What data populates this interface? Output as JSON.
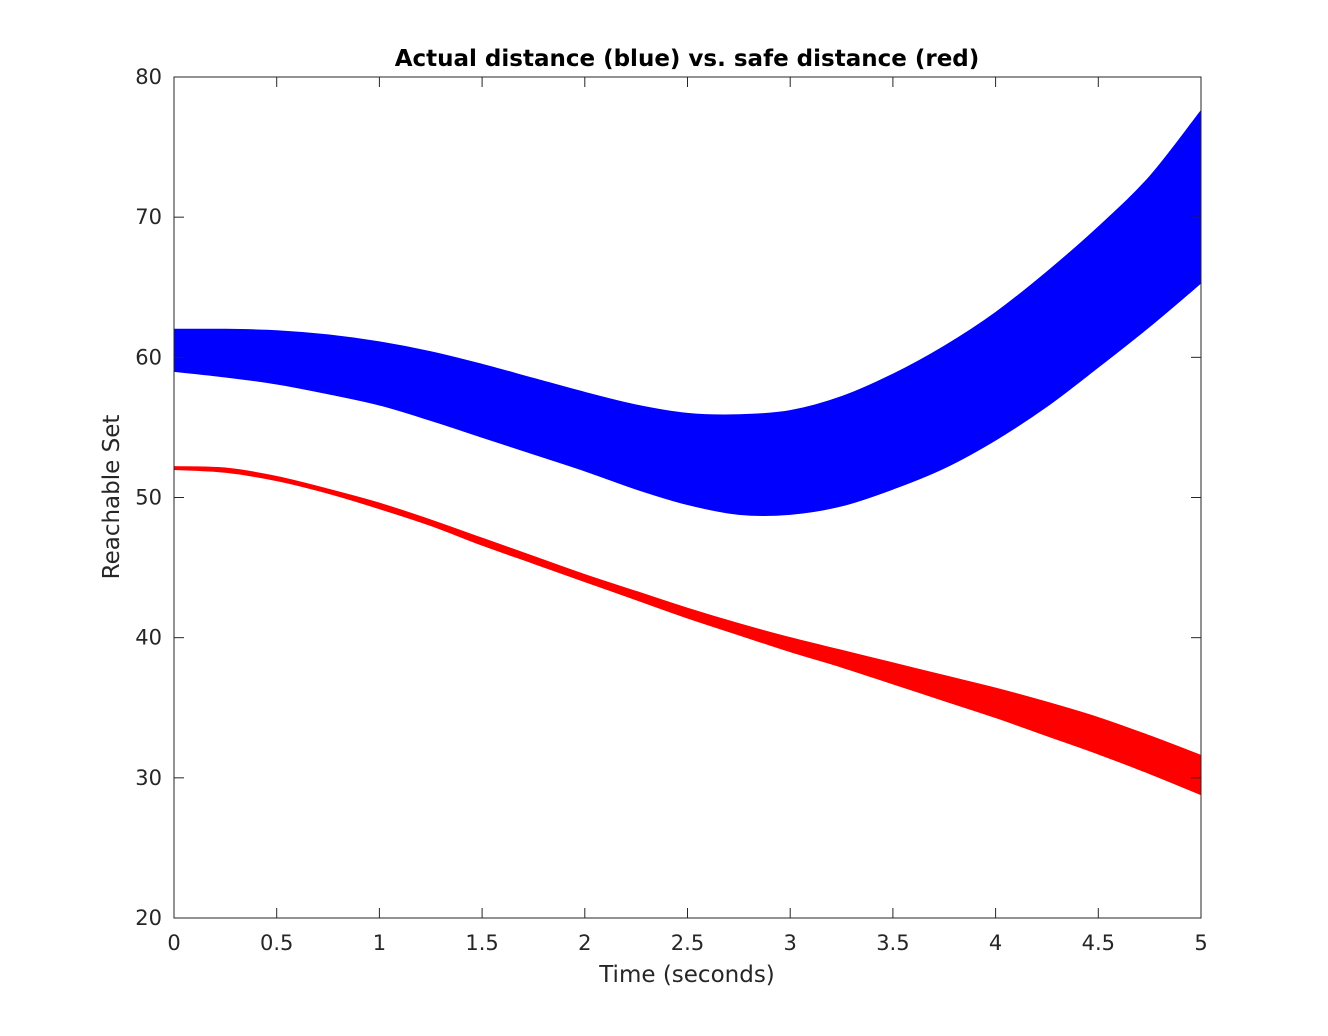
{
  "chart_data": {
    "type": "area",
    "title": "Actual distance (blue) vs. safe distance (red)",
    "xlabel": "Time (seconds)",
    "ylabel": "Reachable Set",
    "xlim": [
      0,
      5
    ],
    "ylim": [
      20,
      80
    ],
    "xticks": [
      "0",
      "0.5",
      "1",
      "1.5",
      "2",
      "2.5",
      "3",
      "3.5",
      "4",
      "4.5",
      "5"
    ],
    "yticks": [
      "20",
      "30",
      "40",
      "50",
      "60",
      "70",
      "80"
    ],
    "grid": false,
    "legend": "none",
    "series": [
      {
        "color": "#0000ff",
        "x": [
          0,
          0.25,
          0.5,
          0.75,
          1,
          1.25,
          1.5,
          1.75,
          2,
          2.25,
          2.5,
          2.75,
          3,
          3.25,
          3.5,
          3.75,
          4,
          4.25,
          4.5,
          4.75,
          5
        ],
        "upper": [
          62.0,
          62.0,
          61.9,
          61.6,
          61.1,
          60.4,
          59.5,
          58.5,
          57.5,
          56.6,
          56.0,
          55.9,
          56.2,
          57.2,
          58.8,
          60.8,
          63.2,
          66.1,
          69.3,
          72.9,
          77.6
        ],
        "lower": [
          59.0,
          58.6,
          58.1,
          57.4,
          56.6,
          55.5,
          54.3,
          53.1,
          51.9,
          50.6,
          49.5,
          48.8,
          48.8,
          49.4,
          50.6,
          52.1,
          54.1,
          56.5,
          59.3,
          62.2,
          65.3
        ]
      },
      {
        "color": "#ff0000",
        "x": [
          0,
          0.25,
          0.5,
          0.75,
          1,
          1.25,
          1.5,
          1.75,
          2,
          2.25,
          2.5,
          2.75,
          3,
          3.25,
          3.5,
          3.75,
          4,
          4.25,
          4.5,
          4.75,
          5
        ],
        "upper": [
          52.2,
          52.1,
          51.5,
          50.6,
          49.6,
          48.4,
          47.1,
          45.8,
          44.5,
          43.3,
          42.1,
          41.0,
          40.0,
          39.1,
          38.2,
          37.3,
          36.4,
          35.4,
          34.3,
          33.0,
          31.6
        ],
        "lower": [
          52.0,
          51.8,
          51.2,
          50.3,
          49.2,
          48.0,
          46.6,
          45.3,
          44.0,
          42.7,
          41.4,
          40.2,
          39.0,
          37.9,
          36.7,
          35.5,
          34.3,
          33.0,
          31.7,
          30.3,
          28.8
        ]
      }
    ]
  }
}
